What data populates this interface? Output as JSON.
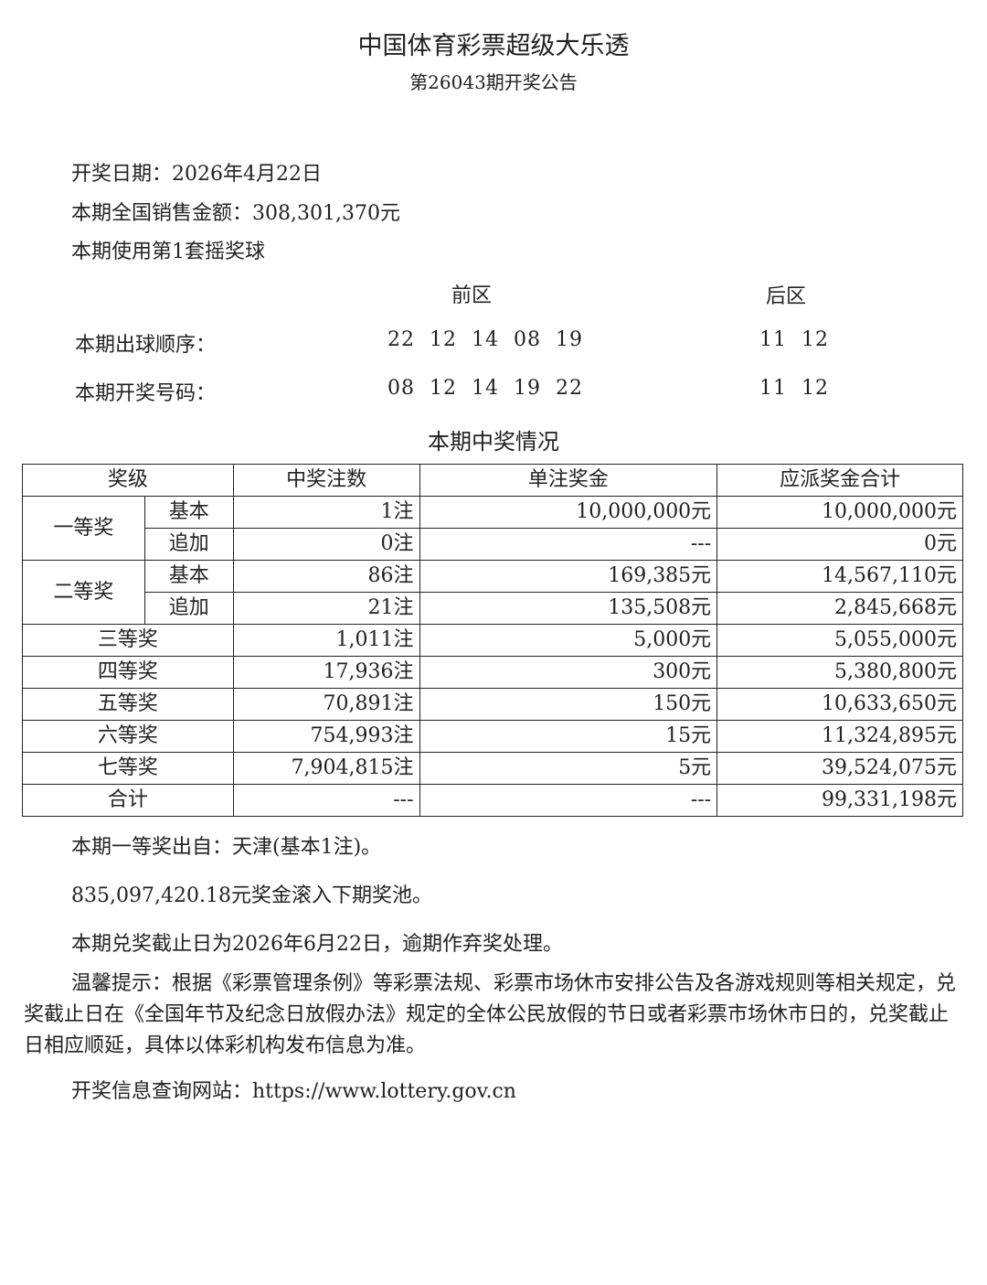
{
  "header": {
    "title": "中国体育彩票超级大乐透",
    "subtitle": "第26043期开奖公告"
  },
  "info": {
    "draw_date": "开奖日期：2026年4月22日",
    "sales": "本期全国销售金额：308,301,370元",
    "ball_set": "本期使用第1套摇奖球"
  },
  "numbers": {
    "front_label": "前区",
    "back_label": "后区",
    "order_label": "本期出球顺序：",
    "order_front": "22  12  14  08  19",
    "order_back": "11  12",
    "result_label": "本期开奖号码：",
    "result_front": "08  12  14  19  22",
    "result_back": "11  12"
  },
  "table": {
    "caption": "本期中奖情况",
    "headers": [
      "奖级",
      "中奖注数",
      "单注奖金",
      "应派奖金合计"
    ],
    "rows": [
      {
        "tier": "一等奖",
        "sub": "基本",
        "count": "1注",
        "prize": "10,000,000元",
        "total": "10,000,000元"
      },
      {
        "tier": "一等奖",
        "sub": "追加",
        "count": "0注",
        "prize": "---",
        "total": "0元"
      },
      {
        "tier": "二等奖",
        "sub": "基本",
        "count": "86注",
        "prize": "169,385元",
        "total": "14,567,110元"
      },
      {
        "tier": "二等奖",
        "sub": "追加",
        "count": "21注",
        "prize": "135,508元",
        "total": "2,845,668元"
      },
      {
        "tier": "三等奖",
        "count": "1,011注",
        "prize": "5,000元",
        "total": "5,055,000元"
      },
      {
        "tier": "四等奖",
        "count": "17,936注",
        "prize": "300元",
        "total": "5,380,800元"
      },
      {
        "tier": "五等奖",
        "count": "70,891注",
        "prize": "150元",
        "total": "10,633,650元"
      },
      {
        "tier": "六等奖",
        "count": "754,993注",
        "prize": "15元",
        "total": "11,324,895元"
      },
      {
        "tier": "七等奖",
        "count": "7,904,815注",
        "prize": "5元",
        "total": "39,524,075元"
      },
      {
        "tier": "合计",
        "count": "---",
        "prize": "---",
        "total": "99,331,198元"
      }
    ]
  },
  "footer": {
    "first_prize_origin": "本期一等奖出自：天津(基本1注)。",
    "rollover": "835,097,420.18元奖金滚入下期奖池。",
    "deadline": "本期兑奖截止日为2026年6月22日，逾期作弃奖处理。",
    "notice": "温馨提示：根据《彩票管理条例》等彩票法规、彩票市场休市安排公告及各游戏规则等相关规定，兑奖截止日在《全国年节及纪念日放假办法》规定的全体公民放假的节日或者彩票市场休市日的，兑奖截止日相应顺延，具体以体彩机构发布信息为准。",
    "website": "开奖信息查询网站：https://www.lottery.gov.cn"
  }
}
